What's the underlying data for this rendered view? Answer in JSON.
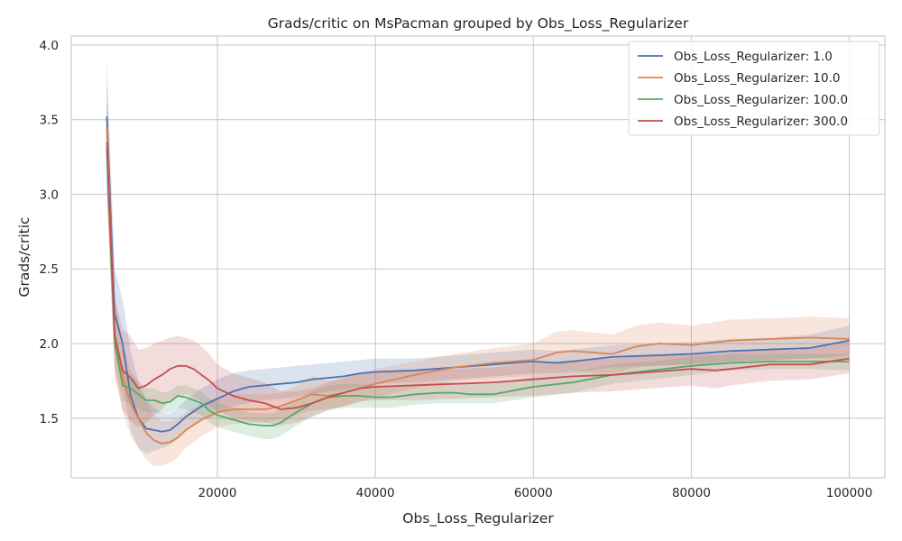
{
  "chart_data": {
    "type": "line",
    "title": "Grads/critic on MsPacman grouped by Obs_Loss_Regularizer",
    "xlabel": "Obs_Loss_Regularizer",
    "ylabel": "Grads/critic",
    "xlim": [
      1500,
      104500
    ],
    "ylim": [
      1.1,
      4.06
    ],
    "xticks": [
      20000,
      40000,
      60000,
      80000,
      100000
    ],
    "xtick_labels": [
      "20000",
      "40000",
      "60000",
      "80000",
      "100000"
    ],
    "yticks": [
      1.5,
      2.0,
      2.5,
      3.0,
      3.5,
      4.0
    ],
    "ytick_labels": [
      "1.5",
      "2.0",
      "2.5",
      "3.0",
      "3.5",
      "4.0"
    ],
    "grid": true,
    "legend_position": "top-right",
    "series": [
      {
        "name": "Obs_Loss_Regularizer: 1.0",
        "color": "#4c72b0",
        "x": [
          6000,
          7000,
          8000,
          9000,
          10000,
          11000,
          12000,
          13000,
          14000,
          15000,
          16000,
          18000,
          20000,
          22000,
          24000,
          26000,
          28000,
          30000,
          32000,
          34000,
          36000,
          38000,
          40000,
          45000,
          50000,
          55000,
          60000,
          63000,
          65000,
          70000,
          75000,
          80000,
          85000,
          90000,
          95000,
          100000
        ],
        "y": [
          3.52,
          2.2,
          2.0,
          1.65,
          1.5,
          1.43,
          1.42,
          1.41,
          1.42,
          1.46,
          1.51,
          1.58,
          1.63,
          1.68,
          1.71,
          1.72,
          1.73,
          1.74,
          1.76,
          1.77,
          1.78,
          1.8,
          1.81,
          1.82,
          1.84,
          1.86,
          1.88,
          1.87,
          1.88,
          1.91,
          1.92,
          1.93,
          1.95,
          1.96,
          1.97,
          2.02
        ],
        "lower": [
          3.1,
          1.95,
          1.75,
          1.42,
          1.3,
          1.26,
          1.28,
          1.3,
          1.32,
          1.36,
          1.42,
          1.48,
          1.53,
          1.58,
          1.6,
          1.62,
          1.63,
          1.64,
          1.66,
          1.68,
          1.69,
          1.71,
          1.73,
          1.74,
          1.76,
          1.78,
          1.8,
          1.8,
          1.81,
          1.84,
          1.85,
          1.86,
          1.88,
          1.89,
          1.9,
          1.92
        ],
        "upper": [
          3.9,
          2.5,
          2.3,
          1.95,
          1.75,
          1.62,
          1.57,
          1.53,
          1.53,
          1.57,
          1.62,
          1.7,
          1.76,
          1.8,
          1.82,
          1.83,
          1.84,
          1.85,
          1.86,
          1.87,
          1.88,
          1.89,
          1.9,
          1.9,
          1.92,
          1.94,
          1.96,
          1.95,
          1.96,
          1.99,
          2.0,
          2.01,
          2.03,
          2.04,
          2.06,
          2.12
        ]
      },
      {
        "name": "Obs_Loss_Regularizer: 10.0",
        "color": "#dd8452",
        "x": [
          6000,
          7000,
          8000,
          9000,
          10000,
          11000,
          12000,
          13000,
          14000,
          15000,
          16000,
          18000,
          20000,
          22000,
          24000,
          26000,
          28000,
          30000,
          32000,
          34000,
          36000,
          38000,
          40000,
          45000,
          50000,
          55000,
          60000,
          63000,
          65000,
          70000,
          73000,
          76000,
          80000,
          85000,
          90000,
          95000,
          100000
        ],
        "y": [
          3.45,
          2.05,
          1.78,
          1.6,
          1.5,
          1.4,
          1.35,
          1.33,
          1.34,
          1.37,
          1.42,
          1.49,
          1.54,
          1.56,
          1.56,
          1.56,
          1.58,
          1.62,
          1.66,
          1.65,
          1.67,
          1.7,
          1.73,
          1.79,
          1.84,
          1.87,
          1.89,
          1.94,
          1.95,
          1.93,
          1.98,
          2.0,
          1.99,
          2.02,
          2.03,
          2.04,
          2.03
        ],
        "lower": [
          3.1,
          1.8,
          1.55,
          1.38,
          1.3,
          1.22,
          1.18,
          1.18,
          1.2,
          1.24,
          1.3,
          1.38,
          1.44,
          1.46,
          1.47,
          1.47,
          1.49,
          1.52,
          1.55,
          1.56,
          1.58,
          1.61,
          1.64,
          1.7,
          1.75,
          1.77,
          1.78,
          1.8,
          1.81,
          1.8,
          1.84,
          1.85,
          1.86,
          1.88,
          1.89,
          1.9,
          1.89
        ],
        "upper": [
          3.8,
          2.3,
          2.0,
          1.82,
          1.72,
          1.6,
          1.52,
          1.48,
          1.48,
          1.5,
          1.54,
          1.6,
          1.64,
          1.66,
          1.66,
          1.66,
          1.67,
          1.72,
          1.78,
          1.75,
          1.77,
          1.8,
          1.83,
          1.88,
          1.93,
          1.97,
          2.0,
          2.08,
          2.09,
          2.06,
          2.12,
          2.14,
          2.12,
          2.16,
          2.17,
          2.18,
          2.17
        ]
      },
      {
        "name": "Obs_Loss_Regularizer: 100.0",
        "color": "#55a868",
        "x": [
          6000,
          7000,
          8000,
          9000,
          10000,
          11000,
          12000,
          13000,
          14000,
          15000,
          16000,
          18000,
          19000,
          20000,
          22000,
          24000,
          26000,
          27000,
          28000,
          30000,
          32000,
          34000,
          36000,
          38000,
          40000,
          42000,
          45000,
          48000,
          50000,
          52000,
          55000,
          60000,
          65000,
          70000,
          75000,
          80000,
          85000,
          90000,
          95000,
          100000
        ],
        "y": [
          3.3,
          2.0,
          1.72,
          1.7,
          1.66,
          1.62,
          1.62,
          1.6,
          1.61,
          1.65,
          1.64,
          1.6,
          1.55,
          1.52,
          1.49,
          1.46,
          1.45,
          1.45,
          1.47,
          1.54,
          1.6,
          1.64,
          1.65,
          1.65,
          1.64,
          1.64,
          1.66,
          1.67,
          1.67,
          1.66,
          1.66,
          1.71,
          1.74,
          1.79,
          1.82,
          1.85,
          1.87,
          1.88,
          1.88,
          1.88
        ],
        "lower": [
          3.0,
          1.85,
          1.62,
          1.6,
          1.57,
          1.54,
          1.54,
          1.53,
          1.54,
          1.57,
          1.56,
          1.52,
          1.47,
          1.44,
          1.41,
          1.38,
          1.36,
          1.36,
          1.38,
          1.45,
          1.51,
          1.56,
          1.57,
          1.57,
          1.57,
          1.57,
          1.59,
          1.6,
          1.6,
          1.6,
          1.6,
          1.64,
          1.67,
          1.73,
          1.76,
          1.79,
          1.82,
          1.83,
          1.83,
          1.82
        ],
        "upper": [
          3.6,
          2.15,
          1.82,
          1.8,
          1.75,
          1.7,
          1.7,
          1.67,
          1.68,
          1.72,
          1.72,
          1.68,
          1.63,
          1.6,
          1.57,
          1.54,
          1.53,
          1.53,
          1.56,
          1.62,
          1.68,
          1.72,
          1.73,
          1.73,
          1.72,
          1.72,
          1.73,
          1.74,
          1.74,
          1.73,
          1.73,
          1.78,
          1.81,
          1.86,
          1.88,
          1.91,
          1.93,
          1.93,
          1.93,
          1.93
        ]
      },
      {
        "name": "Obs_Loss_Regularizer: 300.0",
        "color": "#c44e52",
        "x": [
          6000,
          7000,
          8000,
          9000,
          10000,
          11000,
          12000,
          13000,
          14000,
          15000,
          16000,
          17000,
          18000,
          19000,
          20000,
          22000,
          24000,
          26000,
          28000,
          30000,
          32000,
          34000,
          36000,
          38000,
          40000,
          45000,
          50000,
          55000,
          60000,
          65000,
          70000,
          75000,
          80000,
          83000,
          85000,
          90000,
          95000,
          100000
        ],
        "y": [
          3.35,
          2.05,
          1.82,
          1.77,
          1.7,
          1.72,
          1.76,
          1.79,
          1.83,
          1.85,
          1.85,
          1.83,
          1.79,
          1.75,
          1.7,
          1.65,
          1.62,
          1.6,
          1.56,
          1.57,
          1.6,
          1.64,
          1.67,
          1.7,
          1.71,
          1.72,
          1.73,
          1.74,
          1.76,
          1.78,
          1.79,
          1.81,
          1.83,
          1.82,
          1.83,
          1.86,
          1.86,
          1.9
        ],
        "lower": [
          3.0,
          1.8,
          1.55,
          1.48,
          1.44,
          1.47,
          1.52,
          1.56,
          1.62,
          1.65,
          1.66,
          1.64,
          1.61,
          1.58,
          1.55,
          1.5,
          1.48,
          1.47,
          1.45,
          1.47,
          1.51,
          1.55,
          1.58,
          1.61,
          1.62,
          1.62,
          1.63,
          1.64,
          1.65,
          1.67,
          1.68,
          1.7,
          1.72,
          1.7,
          1.72,
          1.75,
          1.76,
          1.8
        ],
        "upper": [
          3.7,
          2.3,
          2.1,
          2.05,
          1.96,
          1.97,
          2.0,
          2.02,
          2.04,
          2.05,
          2.04,
          2.02,
          1.98,
          1.93,
          1.86,
          1.8,
          1.77,
          1.74,
          1.68,
          1.68,
          1.7,
          1.74,
          1.77,
          1.8,
          1.81,
          1.82,
          1.83,
          1.84,
          1.87,
          1.89,
          1.9,
          1.92,
          1.94,
          1.93,
          1.94,
          1.97,
          1.97,
          2.01
        ]
      }
    ]
  }
}
